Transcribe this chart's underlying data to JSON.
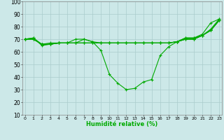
{
  "xlabel": "Humidité relative (%)",
  "background_color": "#cce8e8",
  "grid_color": "#aacccc",
  "line_color": "#00aa00",
  "xlim_min": -0.3,
  "xlim_max": 23.3,
  "ylim_min": 10,
  "ylim_max": 100,
  "xticks": [
    0,
    1,
    2,
    3,
    4,
    5,
    6,
    7,
    8,
    9,
    10,
    11,
    12,
    13,
    14,
    15,
    16,
    17,
    18,
    19,
    20,
    21,
    22,
    23
  ],
  "yticks": [
    10,
    20,
    30,
    40,
    50,
    60,
    70,
    80,
    90,
    100
  ],
  "series": [
    [
      70,
      71,
      66,
      67,
      67,
      67,
      70,
      70,
      68,
      61,
      42,
      35,
      30,
      31,
      36,
      38,
      57,
      64,
      68,
      71,
      71,
      74,
      83,
      86
    ],
    [
      70,
      71,
      65,
      66,
      67,
      67,
      67,
      70,
      68,
      67,
      67,
      67,
      67,
      67,
      67,
      67,
      67,
      67,
      68,
      71,
      71,
      73,
      78,
      86
    ],
    [
      70,
      70,
      66,
      66,
      67,
      67,
      67,
      67,
      67,
      67,
      67,
      67,
      67,
      67,
      67,
      67,
      67,
      67,
      68,
      70,
      70,
      73,
      77,
      85
    ],
    [
      70,
      70,
      66,
      66,
      67,
      67,
      67,
      67,
      67,
      67,
      67,
      67,
      67,
      67,
      67,
      67,
      67,
      67,
      68,
      70,
      70,
      73,
      77,
      85
    ],
    [
      70,
      70,
      66,
      66,
      67,
      67,
      67,
      67,
      67,
      67,
      67,
      67,
      67,
      67,
      67,
      67,
      67,
      67,
      68,
      70,
      70,
      73,
      77,
      85
    ]
  ]
}
